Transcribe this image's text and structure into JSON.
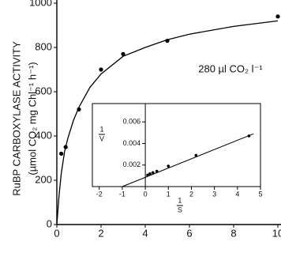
{
  "chart_data": [
    {
      "type": "scatter",
      "y_label": "RuBP CARBOXYLASE ACTIVITY",
      "y_label_units": "(µmol CO₂ mg Chl⁻¹ h⁻¹)",
      "annotation": "280 µl CO₂ l⁻¹",
      "xlim": [
        0,
        10
      ],
      "ylim": [
        0,
        1000
      ],
      "xticks": [
        0,
        2,
        4,
        6,
        8,
        10
      ],
      "yticks": [
        0,
        200,
        400,
        600,
        800,
        1000
      ],
      "series": [
        {
          "color": "#000000",
          "x": [
            0.2,
            0.4,
            1,
            2,
            3,
            5,
            10
          ],
          "values": [
            320,
            350,
            520,
            700,
            770,
            830,
            940
          ]
        },
        {
          "color": "#000000",
          "line": true,
          "x": [
            0,
            0.1,
            0.2,
            0.35,
            0.5,
            0.75,
            1,
            1.5,
            2,
            3,
            4,
            5,
            6,
            8,
            10
          ],
          "values": [
            0,
            130,
            230,
            330,
            390,
            470,
            530,
            620,
            680,
            760,
            800,
            835,
            860,
            895,
            920
          ]
        }
      ]
    },
    {
      "type": "scatter",
      "y_label": {
        "numerator": "1",
        "denominator": "V"
      },
      "x_label": {
        "numerator": "1",
        "denominator": "S"
      },
      "xlim": [
        -2.3,
        5
      ],
      "ylim": [
        0,
        0.0077
      ],
      "xticks": [
        -2,
        -1,
        0,
        1,
        2,
        3,
        4,
        5
      ],
      "yticks": [
        0.002,
        0.004,
        0.006
      ],
      "series": [
        {
          "color": "#000000",
          "x": [
            0.1,
            0.2,
            0.33,
            0.5,
            1,
            2.2,
            4.5
          ],
          "values": [
            0.00107,
            0.0012,
            0.0013,
            0.00143,
            0.0019,
            0.0029,
            0.0047
          ]
        },
        {
          "color": "#000000",
          "line": true,
          "x": [
            -1,
            4.7
          ],
          "values": [
            0,
            0.0049
          ]
        }
      ]
    }
  ]
}
